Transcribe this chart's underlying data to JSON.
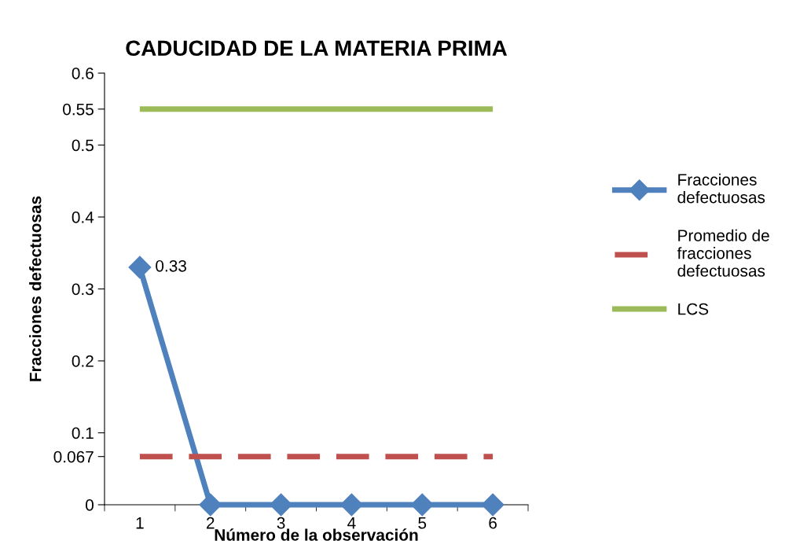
{
  "chart_data": {
    "type": "line",
    "title": "CADUCIDAD DE LA MATERIA PRIMA",
    "xlabel": "Número de la observación",
    "ylabel": "Fracciones defectuosas",
    "categories": [
      "1",
      "2",
      "3",
      "4",
      "5",
      "6"
    ],
    "series": [
      {
        "name": "Fracciones defectuosas",
        "color": "#4f81bd",
        "values": [
          0.33,
          0,
          0,
          0,
          0,
          0
        ],
        "marker": "diamond",
        "line_style": "solid",
        "value_labels": [
          "0.33",
          null,
          null,
          null,
          null,
          null
        ]
      },
      {
        "name": "Promedio de fracciones defectuosas",
        "color": "#c0504d",
        "values": [
          0.067,
          0.067,
          0.067,
          0.067,
          0.067,
          0.067
        ],
        "marker": "none",
        "line_style": "dashed"
      },
      {
        "name": "LCS",
        "color": "#9bbb59",
        "values": [
          0.55,
          0.55,
          0.55,
          0.55,
          0.55,
          0.55
        ],
        "marker": "none",
        "line_style": "solid"
      }
    ],
    "ylim": [
      0,
      0.6
    ],
    "yticks": [
      0,
      0.067,
      0.1,
      0.2,
      0.3,
      0.4,
      0.5,
      0.55,
      0.6
    ],
    "grid": false,
    "legend": "right"
  }
}
